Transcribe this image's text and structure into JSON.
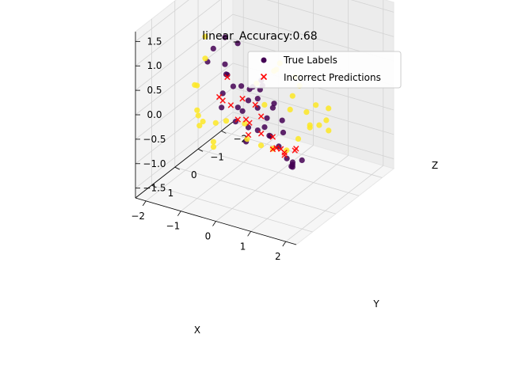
{
  "chart_data": {
    "type": "scatter",
    "projection": "3d",
    "title": "linear_Accuracy:0.68",
    "xlabel": "X",
    "ylabel": "Y",
    "zlabel": "Z",
    "xlim": [
      -2.3,
      2.3
    ],
    "ylim": [
      -2.5,
      1.7
    ],
    "zlim": [
      -1.7,
      1.7
    ],
    "x_ticks": [
      -2,
      -1,
      0,
      1,
      2
    ],
    "y_ticks": [
      -2,
      -1,
      0,
      1
    ],
    "z_ticks": [
      -1.5,
      -1.0,
      -0.5,
      0.0,
      0.5,
      1.0,
      1.5
    ],
    "x_tick_labels": [
      "−2",
      "−1",
      "0",
      "1",
      "2"
    ],
    "y_tick_labels": [
      "−2",
      "−1",
      "0",
      "1"
    ],
    "z_tick_labels": [
      "−1.5",
      "−1.0",
      "−0.5",
      "0.0",
      "0.5",
      "1.0",
      "1.5"
    ],
    "grid": true,
    "legend": {
      "position": "top-right",
      "entries": [
        "True Labels",
        "Incorrect Predictions"
      ]
    },
    "colors": {
      "class_0": "#440154",
      "class_1": "#fde725",
      "incorrect": "#ff0000",
      "pane": "#f2f2f2",
      "grid": "#cfcfcf"
    },
    "series": [
      {
        "name": "True Labels",
        "marker": "circle",
        "note_color_by_label": true,
        "points": [
          [
            -1.4,
            -0.3,
            0.8,
            0
          ],
          [
            -1.2,
            -0.5,
            1.0,
            0
          ],
          [
            -1.0,
            -0.2,
            0.6,
            0
          ],
          [
            -0.9,
            -0.6,
            0.9,
            0
          ],
          [
            -1.3,
            0.1,
            0.7,
            0
          ],
          [
            -0.8,
            0.0,
            0.5,
            0
          ],
          [
            -1.1,
            -0.4,
            0.3,
            0
          ],
          [
            -0.6,
            -0.3,
            0.2,
            0
          ],
          [
            -0.5,
            0.2,
            0.4,
            0
          ],
          [
            -0.7,
            0.4,
            0.0,
            0
          ],
          [
            -0.3,
            0.1,
            -0.1,
            0
          ],
          [
            -0.2,
            -0.4,
            -0.2,
            0
          ],
          [
            0.0,
            0.3,
            -0.3,
            0
          ],
          [
            0.2,
            -0.1,
            -0.4,
            0
          ],
          [
            0.4,
            0.5,
            -0.2,
            0
          ],
          [
            0.6,
            0.8,
            0.6,
            0
          ],
          [
            0.8,
            1.0,
            0.9,
            0
          ],
          [
            1.0,
            1.2,
            1.1,
            0
          ],
          [
            1.2,
            1.0,
            0.7,
            0
          ],
          [
            0.9,
            0.6,
            0.4,
            0
          ],
          [
            1.1,
            1.4,
            1.3,
            0
          ],
          [
            0.7,
            1.3,
            1.0,
            0
          ],
          [
            1.3,
            0.8,
            0.3,
            0
          ],
          [
            1.4,
            1.1,
            -0.1,
            0
          ],
          [
            1.5,
            0.9,
            -0.4,
            0
          ],
          [
            1.6,
            0.4,
            -0.6,
            0
          ],
          [
            1.2,
            0.2,
            -0.8,
            0
          ],
          [
            1.0,
            -0.1,
            -1.0,
            0
          ],
          [
            0.8,
            -0.4,
            -1.2,
            0
          ],
          [
            0.5,
            -0.8,
            -1.4,
            0
          ],
          [
            0.3,
            -0.2,
            -0.6,
            0
          ],
          [
            -0.1,
            0.6,
            0.2,
            0
          ],
          [
            -0.4,
            0.8,
            0.5,
            0
          ],
          [
            0.1,
            1.0,
            0.1,
            0
          ],
          [
            -0.6,
            -0.8,
            0.0,
            0
          ],
          [
            0.0,
            -0.6,
            -0.8,
            0
          ],
          [
            -0.2,
            0.0,
            0.1,
            0
          ],
          [
            0.4,
            0.1,
            -0.1,
            0
          ],
          [
            0.6,
            -0.3,
            -0.5,
            0
          ],
          [
            0.2,
            0.7,
            -0.4,
            0
          ],
          [
            -1.5,
            -0.1,
            1.1,
            1
          ],
          [
            -1.7,
            -0.4,
            0.5,
            1
          ],
          [
            -1.6,
            0.2,
            0.2,
            1
          ],
          [
            -1.8,
            -0.2,
            0.0,
            1
          ],
          [
            -1.4,
            0.4,
            -0.2,
            1
          ],
          [
            -1.2,
            0.6,
            -0.4,
            1
          ],
          [
            -1.5,
            0.0,
            -0.6,
            1
          ],
          [
            -1.0,
            0.3,
            -0.8,
            1
          ],
          [
            -0.9,
            -0.1,
            -0.5,
            1
          ],
          [
            -1.1,
            0.8,
            -0.1,
            1
          ],
          [
            -0.8,
            0.5,
            -0.3,
            1
          ],
          [
            -0.6,
            0.9,
            -0.6,
            1
          ],
          [
            -0.5,
            -0.4,
            -0.9,
            1
          ],
          [
            -0.3,
            -0.7,
            -1.1,
            1
          ],
          [
            -0.1,
            -0.9,
            -1.2,
            1
          ],
          [
            0.1,
            -1.2,
            -1.3,
            1
          ],
          [
            0.3,
            -1.4,
            -1.1,
            1
          ],
          [
            0.5,
            -1.6,
            -0.9,
            1
          ],
          [
            0.7,
            -1.3,
            -0.7,
            1
          ],
          [
            0.9,
            -1.8,
            -0.5,
            1
          ],
          [
            1.1,
            -1.5,
            -0.8,
            1
          ],
          [
            0.8,
            -1.0,
            -0.3,
            1
          ],
          [
            0.6,
            -0.7,
            0.1,
            1
          ],
          [
            0.4,
            -1.1,
            0.3,
            1
          ],
          [
            0.2,
            -0.5,
            0.6,
            1
          ],
          [
            0.9,
            0.3,
            1.2,
            1
          ],
          [
            0.6,
            0.0,
            0.9,
            1
          ],
          [
            0.3,
            0.4,
            0.7,
            1
          ],
          [
            1.0,
            -0.4,
            0.5,
            1
          ],
          [
            1.2,
            -0.8,
            0.0,
            1
          ],
          [
            -0.4,
            -1.0,
            -0.4,
            1
          ],
          [
            -0.7,
            -0.6,
            -0.7,
            1
          ],
          [
            0.0,
            -1.5,
            -0.6,
            1
          ],
          [
            0.5,
            -2.0,
            -1.0,
            1
          ],
          [
            1.3,
            -1.1,
            -0.4,
            1
          ]
        ]
      },
      {
        "name": "Incorrect Predictions",
        "marker": "x",
        "points": [
          [
            -0.9,
            0.2,
            0.1
          ],
          [
            -0.7,
            0.0,
            -0.1
          ],
          [
            -0.5,
            -0.2,
            0.0
          ],
          [
            -0.3,
            0.3,
            -0.2
          ],
          [
            -0.1,
            0.1,
            -0.3
          ],
          [
            0.1,
            -0.1,
            -0.2
          ],
          [
            0.3,
            0.2,
            -0.4
          ],
          [
            0.5,
            0.0,
            -0.5
          ],
          [
            0.7,
            0.3,
            -0.6
          ],
          [
            0.9,
            0.1,
            -0.7
          ],
          [
            1.1,
            0.4,
            -0.6
          ],
          [
            1.3,
            0.2,
            -0.5
          ],
          [
            -0.6,
            0.5,
            0.2
          ],
          [
            -0.2,
            -0.3,
            -0.1
          ],
          [
            0.2,
            0.6,
            -0.3
          ],
          [
            0.6,
            -0.2,
            -0.8
          ],
          [
            1.0,
            0.6,
            -0.4
          ],
          [
            -1.0,
            -0.3,
            0.3
          ],
          [
            0.0,
            0.4,
            -0.1
          ],
          [
            0.8,
            -0.5,
            -0.9
          ]
        ]
      }
    ]
  }
}
